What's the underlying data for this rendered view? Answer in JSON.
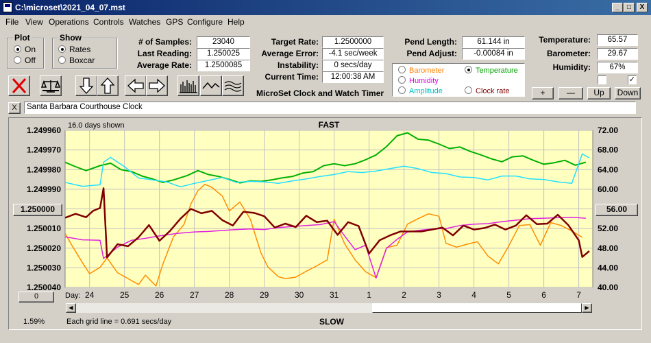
{
  "window": {
    "title": "C:\\microset\\2021_04_07.mst"
  },
  "caption_buttons": {
    "minimize": "_",
    "maximize": "□",
    "close": "X"
  },
  "menu": [
    "File",
    "View",
    "Operations",
    "Controls",
    "Watches",
    "GPS",
    "Configure",
    "Help"
  ],
  "plot_group": {
    "title": "Plot",
    "options": [
      "On",
      "Off"
    ],
    "selected": "On"
  },
  "show_group": {
    "title": "Show",
    "options": [
      "Rates",
      "Boxcar"
    ],
    "selected": "Rates"
  },
  "stats": {
    "samples_label": "# of Samples:",
    "samples": "23040",
    "last_reading_label": "Last Reading:",
    "last_reading": "1.250025",
    "average_rate_label": "Average Rate:",
    "average_rate": "1.2500085",
    "target_rate_label": "Target Rate:",
    "target_rate": "1.2500000",
    "average_error_label": "Average Error:",
    "average_error": "-4.1 sec/week",
    "instability_label": "Instability:",
    "instability": "0 secs/day",
    "current_time_label": "Current Time:",
    "current_time": "12:00:38 AM",
    "pend_length_label": "Pend Length:",
    "pend_length": "61.144 in",
    "pend_adjust_label": "Pend Adjust:",
    "pend_adjust": "-0.00084 in",
    "temperature_label": "Temperature:",
    "temperature": "65.57",
    "barometer_label": "Barometer:",
    "barometer": "29.67",
    "humidity_label": "Humidity:",
    "humidity": "67%"
  },
  "app_caption": "MicroSet Clock and Watch Timer",
  "sensor_group": {
    "options": [
      {
        "label": "Barometer",
        "color": "#ff8000",
        "selected": false
      },
      {
        "label": "Temperature",
        "color": "#00a000",
        "selected": true
      },
      {
        "label": "Humidity",
        "color": "#e000e0",
        "selected": false
      },
      {
        "label": "Clock rate",
        "color": "#800000",
        "selected": false
      },
      {
        "label": "Amplitude",
        "color": "#00c0c0",
        "selected": false
      }
    ]
  },
  "scale_buttons": {
    "plus": "+",
    "minus": "—",
    "up": "Up",
    "down": "Down"
  },
  "checkboxes": [
    {
      "checked": false
    },
    {
      "checked": true
    }
  ],
  "watch_close": "X",
  "watch_name": "Santa Barbara Courthouse Clock",
  "plot": {
    "days_shown": "16.0 days shown",
    "top_label": "FAST",
    "bottom_label": "SLOW",
    "grid_note": "Each grid line = 0.691 secs/day",
    "day_label": "Day:",
    "percent": "1.59%",
    "left_center_button": "1.250000",
    "right_center_button": "56.00",
    "left_bottom_button": "0",
    "background_color": "#ffffc0",
    "grid_color": "#c0c0c0"
  },
  "chart_data": {
    "type": "line",
    "x_label": "Day:",
    "x_tick_labels": [
      "24",
      "25",
      "26",
      "27",
      "28",
      "29",
      "30",
      "31",
      "1",
      "2",
      "3",
      "4",
      "5",
      "6",
      "7"
    ],
    "y_left_ticks": [
      "1.249960",
      "1.249970",
      "1.249980",
      "1.249990",
      "1.250000",
      "1.250010",
      "1.250020",
      "1.250030",
      "1.250040"
    ],
    "y_left_range": [
      1.24996,
      1.25004
    ],
    "y_right_ticks": [
      "72.00",
      "68.00",
      "64.00",
      "60.00",
      "56.00",
      "52.00",
      "48.00",
      "44.00",
      "40.00"
    ],
    "y_right_range": [
      40,
      72
    ],
    "x_range": [
      23.3,
      38.4
    ],
    "series": [
      {
        "color": "#00b000",
        "axis": "right",
        "width": 2,
        "x": [
          23.3,
          23.6,
          23.9,
          24.3,
          24.6,
          24.9,
          25.2,
          25.5,
          25.8,
          26.1,
          26.4,
          26.8,
          27.1,
          27.4,
          27.7,
          28.0,
          28.3,
          28.6,
          28.9,
          29.2,
          29.5,
          29.8,
          30.1,
          30.4,
          30.7,
          31.0,
          31.3,
          31.6,
          31.9,
          32.2,
          32.5,
          32.8,
          33.1,
          33.4,
          33.7,
          34.0,
          34.3,
          34.6,
          34.9,
          35.2,
          35.5,
          35.8,
          36.1,
          36.4,
          36.7,
          37.0,
          37.3,
          37.6,
          37.9,
          38.2
        ],
        "y": [
          65.5,
          64.6,
          63.8,
          64.8,
          65.3,
          64.0,
          63.6,
          62.7,
          62.1,
          61.4,
          61.9,
          62.8,
          63.8,
          63.0,
          62.6,
          62.0,
          61.3,
          61.7,
          61.6,
          61.9,
          62.3,
          62.6,
          63.3,
          63.6,
          64.8,
          65.2,
          64.8,
          65.2,
          66.0,
          67.0,
          68.7,
          70.9,
          71.5,
          70.2,
          70.0,
          69.2,
          68.3,
          68.6,
          67.7,
          67.0,
          66.2,
          65.6,
          66.6,
          66.8,
          65.9,
          65.1,
          65.4,
          65.9,
          64.9,
          65.5
        ]
      },
      {
        "color": "#20e0ff",
        "axis": "right",
        "width": 1.5,
        "x": [
          23.3,
          23.8,
          24.3,
          24.4,
          24.6,
          25.0,
          25.4,
          25.8,
          26.2,
          26.6,
          27.0,
          27.4,
          27.8,
          28.2,
          28.6,
          29.0,
          29.4,
          29.8,
          30.2,
          30.6,
          31.0,
          31.4,
          31.8,
          32.2,
          32.6,
          33.0,
          33.4,
          33.8,
          34.2,
          34.6,
          35.0,
          35.4,
          35.8,
          36.2,
          36.6,
          37.0,
          37.4,
          37.8,
          38.0,
          38.1,
          38.3
        ],
        "y": [
          61.4,
          60.6,
          60.9,
          65.5,
          66.5,
          64.6,
          62.3,
          61.9,
          61.5,
          60.5,
          61.2,
          61.8,
          62.4,
          61.4,
          61.6,
          61.5,
          61.2,
          61.7,
          62.1,
          62.6,
          63.0,
          63.6,
          63.4,
          63.7,
          64.2,
          64.7,
          64.2,
          63.4,
          63.2,
          62.5,
          62.4,
          61.9,
          62.7,
          62.7,
          62.1,
          62.0,
          61.5,
          61.2,
          65.2,
          67.2,
          66.4
        ]
      },
      {
        "color": "#ff8c00",
        "axis": "right",
        "width": 1.5,
        "x": [
          23.3,
          23.5,
          23.8,
          24.0,
          24.3,
          24.5,
          24.8,
          25.1,
          25.4,
          25.6,
          25.9,
          26.1,
          26.4,
          26.7,
          26.9,
          27.1,
          27.3,
          27.5,
          27.8,
          28.0,
          28.3,
          28.6,
          28.9,
          29.1,
          29.4,
          29.6,
          29.9,
          30.2,
          30.5,
          30.8,
          31.0,
          31.3,
          31.6,
          31.9,
          32.2,
          32.5,
          32.8,
          33.1,
          33.4,
          33.7,
          34.0,
          34.2,
          34.5,
          34.8,
          35.1,
          35.4,
          35.7,
          36.0,
          36.3,
          36.6,
          36.9,
          37.2,
          37.5,
          37.8,
          38.1
        ],
        "y": [
          51.0,
          48.5,
          45.0,
          42.8,
          44.1,
          46.0,
          43.0,
          41.8,
          40.6,
          42.5,
          40.3,
          44.8,
          50.3,
          52.8,
          57.0,
          59.7,
          61.0,
          60.4,
          58.6,
          55.6,
          57.4,
          53.9,
          47.1,
          44.2,
          42.2,
          41.8,
          42.1,
          43.3,
          44.4,
          45.6,
          53.9,
          48.9,
          45.6,
          43.2,
          42.0,
          48.1,
          48.6,
          52.9,
          54.0,
          55.0,
          54.5,
          49.0,
          48.2,
          48.8,
          49.3,
          46.4,
          44.8,
          48.5,
          52.6,
          52.8,
          48.6,
          53.2,
          52.6,
          51.5,
          50.2
        ]
      },
      {
        "color": "#e020e0",
        "axis": "right",
        "width": 1.5,
        "x": [
          23.3,
          23.8,
          24.3,
          24.4,
          24.8,
          25.2,
          25.6,
          26.0,
          26.5,
          27.0,
          27.4,
          27.8,
          28.2,
          28.6,
          29.0,
          29.4,
          29.8,
          30.2,
          30.6,
          31.0,
          31.3,
          31.6,
          31.9,
          32.2,
          32.5,
          32.8,
          33.1,
          33.4,
          33.8,
          34.2,
          34.6,
          35.0,
          35.4,
          35.8,
          36.2,
          36.6,
          37.0,
          37.4,
          37.8,
          38.2
        ],
        "y": [
          50.3,
          49.7,
          49.6,
          45.9,
          48.2,
          49.6,
          50.0,
          50.5,
          51.0,
          51.3,
          51.4,
          51.6,
          51.8,
          51.9,
          51.8,
          52.2,
          52.4,
          52.6,
          52.8,
          53.4,
          50.5,
          47.7,
          48.6,
          41.9,
          48.0,
          49.8,
          51.3,
          51.6,
          51.9,
          52.0,
          52.6,
          52.9,
          53.0,
          53.4,
          53.7,
          54.0,
          54.1,
          54.2,
          54.3,
          54.1
        ]
      },
      {
        "color": "#800000",
        "axis": "right",
        "width": 2.5,
        "x": [
          23.3,
          23.6,
          23.9,
          24.1,
          24.3,
          24.4,
          24.5,
          24.8,
          25.1,
          25.4,
          25.7,
          26.0,
          26.3,
          26.6,
          26.9,
          27.2,
          27.5,
          27.8,
          28.1,
          28.4,
          28.7,
          29.0,
          29.3,
          29.6,
          29.9,
          30.2,
          30.5,
          30.8,
          31.1,
          31.4,
          31.7,
          32.0,
          32.3,
          32.6,
          32.9,
          33.2,
          33.5,
          33.8,
          34.1,
          34.4,
          34.7,
          35.0,
          35.3,
          35.6,
          35.9,
          36.2,
          36.5,
          36.8,
          37.1,
          37.4,
          37.7,
          38.0,
          38.1,
          38.3
        ],
        "y": [
          54.2,
          55.0,
          54.3,
          55.6,
          56.2,
          60.2,
          46.1,
          48.8,
          48.4,
          50.2,
          52.7,
          49.5,
          51.5,
          54.0,
          56.0,
          55.1,
          55.6,
          53.7,
          52.6,
          55.4,
          55.2,
          54.5,
          52.2,
          53.0,
          52.3,
          54.6,
          53.3,
          53.6,
          50.7,
          53.3,
          52.5,
          46.9,
          49.6,
          50.6,
          51.4,
          51.4,
          51.4,
          51.8,
          52.2,
          50.6,
          52.6,
          51.8,
          52.1,
          52.8,
          51.8,
          52.6,
          54.7,
          52.9,
          53.0,
          54.8,
          52.7,
          49.6,
          46.2,
          47.4
        ]
      }
    ]
  }
}
